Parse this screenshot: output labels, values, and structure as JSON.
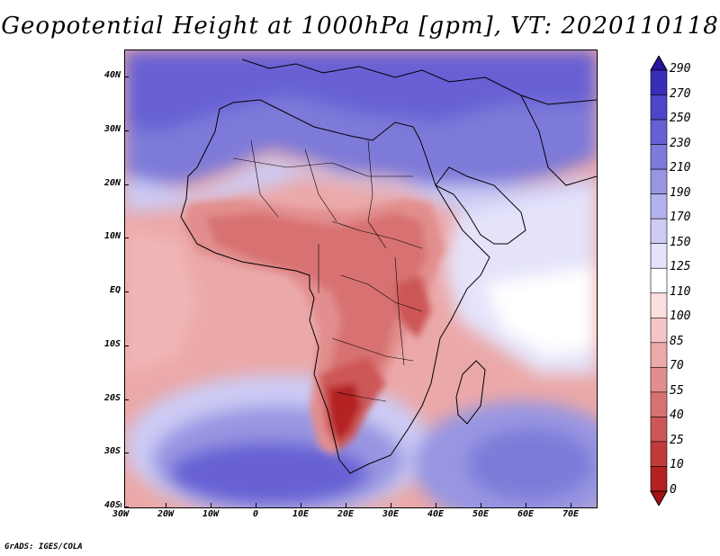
{
  "title": "Geopotential Height at 1000hPa [gpm], VT: 2020110118",
  "footer": "GrADS: IGES/COLA",
  "map": {
    "variable": "Geopotential Height at 1000hPa",
    "units": "gpm",
    "valid_time": "2020110118",
    "lon_range": [
      -30,
      75
    ],
    "lat_range": [
      -40,
      45
    ],
    "lat_labels": [
      "40N",
      "30N",
      "20N",
      "10N",
      "EQ",
      "10S",
      "20S",
      "30S",
      "40S"
    ],
    "lon_labels": [
      "30W",
      "20W",
      "10W",
      "0",
      "10E",
      "20E",
      "30E",
      "40E",
      "50E",
      "60E",
      "70E"
    ]
  },
  "colorbar": {
    "labels": [
      "290",
      "270",
      "250",
      "230",
      "210",
      "190",
      "170",
      "150",
      "125",
      "110",
      "100",
      "85",
      "70",
      "55",
      "40",
      "25",
      "10",
      "0"
    ],
    "colors": [
      "#27159e",
      "#3a2eb8",
      "#4f45c8",
      "#6760d4",
      "#7e7ad9",
      "#9896e2",
      "#b3b2ec",
      "#cccbf4",
      "#e4e3fa",
      "#ffffff",
      "#fce0e0",
      "#f5c4c4",
      "#ecaaaa",
      "#e28e8e",
      "#d87272",
      "#cd5656",
      "#c23b3b",
      "#b42121",
      "#a51010"
    ]
  }
}
